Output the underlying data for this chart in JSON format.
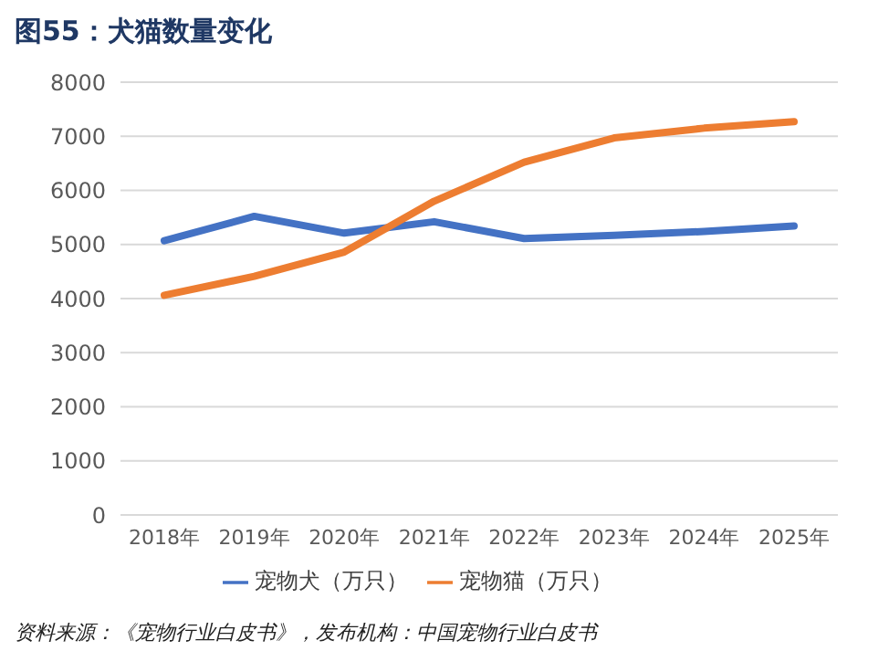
{
  "chart_data": {
    "type": "line",
    "title": "图55：犬猫数量变化",
    "categories": [
      "2018年",
      "2019年",
      "2020年",
      "2021年",
      "2022年",
      "2023年",
      "2024年",
      "2025年"
    ],
    "series": [
      {
        "name": "宠物犬（万只）",
        "color": "#4472c4",
        "values": [
          5070,
          5520,
          5210,
          5420,
          5110,
          5170,
          5240,
          5340
        ]
      },
      {
        "name": "宠物猫（万只）",
        "color": "#ed7d31",
        "values": [
          4060,
          4410,
          4860,
          5800,
          6520,
          6970,
          7150,
          7270
        ]
      }
    ],
    "ylim": [
      0,
      8000
    ],
    "yticks": [
      0,
      1000,
      2000,
      3000,
      4000,
      5000,
      6000,
      7000,
      8000
    ],
    "grid": "y",
    "legend": "bottom",
    "marker": "none",
    "line_style": "solid",
    "annotations": [
      "资料来源：《宠物行业白皮书》，发布机构：中国宠物行业白皮书"
    ]
  }
}
